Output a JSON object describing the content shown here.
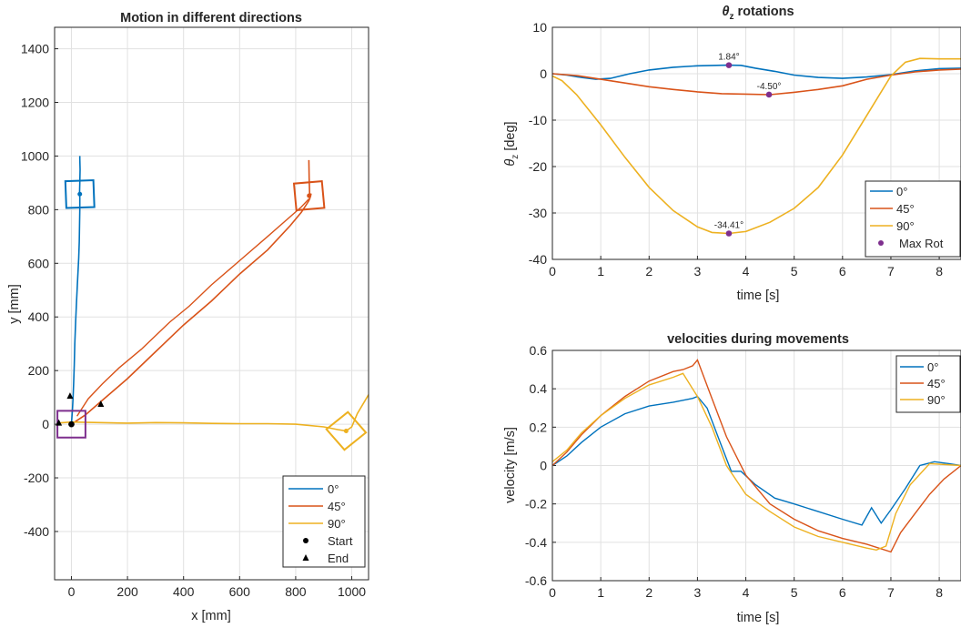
{
  "colors": {
    "c0": "#0072BD",
    "c45": "#D95319",
    "c90": "#EDB120",
    "marker": "#7E2F8E",
    "start_box": "#7E2F8E"
  },
  "chart_data": [
    {
      "type": "line",
      "title": "Motion in different directions",
      "xlabel": "x [mm]",
      "ylabel": "y [mm]",
      "xlim": [
        -60,
        1060
      ],
      "ylim": [
        -580,
        1480
      ],
      "xticks": [
        0,
        200,
        400,
        600,
        800,
        1000
      ],
      "yticks": [
        -400,
        -200,
        0,
        200,
        400,
        600,
        800,
        1000,
        1200,
        1400
      ],
      "grid": true,
      "legend": {
        "position": "bottom-right",
        "entries": [
          "0°",
          "45°",
          "90°",
          "Start",
          "End"
        ]
      },
      "series": [
        {
          "name": "0°",
          "color_key": "c0",
          "x": [
            0,
            2,
            4,
            6,
            8,
            10,
            12,
            15,
            18,
            21,
            24,
            26,
            28,
            29,
            30,
            30,
            29,
            30,
            31,
            30,
            30
          ],
          "y": [
            0,
            30,
            60,
            100,
            150,
            220,
            300,
            380,
            450,
            520,
            580,
            620,
            680,
            740,
            800,
            845,
            860,
            900,
            950,
            990,
            1000
          ],
          "end_box": {
            "center": [
              30,
              858
            ],
            "size_mm": 100,
            "angle_deg": 2
          }
        },
        {
          "name": "45°",
          "color_key": "c45",
          "x": [
            0,
            50,
            100,
            200,
            300,
            400,
            500,
            600,
            700,
            780,
            820,
            845,
            850,
            855,
            850,
            848,
            847
          ],
          "y": [
            0,
            35,
            80,
            170,
            270,
            370,
            460,
            560,
            650,
            740,
            790,
            830,
            840,
            860,
            850,
            920,
            985
          ],
          "x_back": [
            847,
            820,
            700,
            600,
            500,
            420,
            350,
            250,
            170,
            110,
            60,
            20
          ],
          "y_back": [
            840,
            810,
            700,
            610,
            520,
            440,
            380,
            280,
            210,
            150,
            95,
            30
          ],
          "end_box": {
            "center": [
              848,
              852
            ],
            "size_mm": 100,
            "angle_deg": 5
          }
        },
        {
          "name": "90°",
          "color_key": "c90",
          "x": [
            -40,
            0,
            100,
            200,
            300,
            400,
            500,
            600,
            700,
            800,
            900,
            950,
            980,
            1000,
            1020,
            1060
          ],
          "y": [
            5,
            8,
            6,
            4,
            6,
            5,
            3,
            2,
            2,
            0,
            -10,
            -20,
            -25,
            -10,
            40,
            110
          ],
          "end_box": {
            "center": [
              980,
              -25
            ],
            "size_mm": 100,
            "angle_deg": 40
          }
        }
      ],
      "start_points": [
        [
          0,
          0
        ],
        [
          0,
          0
        ],
        [
          0,
          0
        ]
      ],
      "end_points": [
        [
          -45,
          5
        ],
        [
          105,
          75
        ],
        [
          -5,
          105
        ]
      ],
      "start_box": {
        "center": [
          0,
          0
        ],
        "size_mm": 100,
        "angle_deg": 0
      }
    },
    {
      "type": "line",
      "title": "θz rotations",
      "title_main": "θ",
      "title_sub": "z",
      "title_rest": " rotations",
      "xlabel": "time [s]",
      "ylabel": "θz [deg]",
      "ylabel_main": "θ",
      "ylabel_sub": "z",
      "ylabel_rest": " [deg]",
      "xlim": [
        0,
        8.45
      ],
      "ylim": [
        -40,
        10
      ],
      "xticks": [
        0,
        1,
        2,
        3,
        4,
        5,
        6,
        7,
        8
      ],
      "yticks": [
        -40,
        -30,
        -20,
        -10,
        0,
        10
      ],
      "grid": true,
      "legend": {
        "position": "bottom-right",
        "entries": [
          "0°",
          "45°",
          "90°",
          "Max Rot"
        ]
      },
      "series": [
        {
          "name": "0°",
          "color_key": "c0",
          "x": [
            0,
            0.3,
            0.6,
            0.9,
            1.2,
            1.6,
            2.0,
            2.5,
            3.0,
            3.6,
            3.9,
            4.2,
            4.6,
            5.0,
            5.5,
            6.0,
            6.5,
            7.0,
            7.5,
            8.0,
            8.45
          ],
          "y": [
            0,
            -0.3,
            -0.8,
            -1.2,
            -1.0,
            0,
            0.8,
            1.4,
            1.7,
            1.84,
            1.8,
            1.2,
            0.5,
            -0.3,
            -0.8,
            -1.0,
            -0.7,
            -0.2,
            0.6,
            1.1,
            1.2
          ]
        },
        {
          "name": "45°",
          "color_key": "c45",
          "x": [
            0,
            0.5,
            1.0,
            1.5,
            2.0,
            2.5,
            3.0,
            3.5,
            4.0,
            4.5,
            5.0,
            5.5,
            6.0,
            6.5,
            7.0,
            7.5,
            8.0,
            8.45
          ],
          "y": [
            0,
            -0.4,
            -1.2,
            -2.0,
            -2.8,
            -3.4,
            -3.9,
            -4.3,
            -4.4,
            -4.5,
            -4.0,
            -3.4,
            -2.6,
            -1.2,
            -0.3,
            0.4,
            0.8,
            1.0
          ]
        },
        {
          "name": "90°",
          "color_key": "c90",
          "x": [
            0,
            0.2,
            0.5,
            1.0,
            1.5,
            2.0,
            2.5,
            3.0,
            3.3,
            3.65,
            4.0,
            4.5,
            5.0,
            5.5,
            6.0,
            6.5,
            7.0,
            7.3,
            7.6,
            8.0,
            8.45
          ],
          "y": [
            -0.5,
            -1.5,
            -4.5,
            -11,
            -18,
            -24.5,
            -29.5,
            -33,
            -34.2,
            -34.41,
            -34,
            -32,
            -29,
            -24.5,
            -17.5,
            -9,
            -0.5,
            2.5,
            3.3,
            3.2,
            3.2
          ]
        }
      ],
      "max_points": [
        {
          "x": 3.65,
          "y": 1.84,
          "label": "1.84°"
        },
        {
          "x": 4.48,
          "y": -4.5,
          "label": "-4.50°"
        },
        {
          "x": 3.65,
          "y": -34.41,
          "label": "-34.41°"
        }
      ]
    },
    {
      "type": "line",
      "title": "velocities during movements",
      "xlabel": "time [s]",
      "ylabel": "velocity [m/s]",
      "xlim": [
        0,
        8.45
      ],
      "ylim": [
        -0.6,
        0.6
      ],
      "xticks": [
        0,
        1,
        2,
        3,
        4,
        5,
        6,
        7,
        8
      ],
      "yticks": [
        -0.6,
        -0.4,
        -0.2,
        0,
        0.2,
        0.4,
        0.6
      ],
      "grid": true,
      "legend": {
        "position": "top-right",
        "entries": [
          "0°",
          "45°",
          "90°"
        ]
      },
      "series": [
        {
          "name": "0°",
          "color_key": "c0",
          "x": [
            0,
            0.3,
            0.6,
            1.0,
            1.5,
            2.0,
            2.5,
            2.9,
            3.0,
            3.2,
            3.5,
            3.7,
            3.9,
            4.2,
            4.6,
            5.0,
            5.5,
            6.0,
            6.4,
            6.6,
            6.8,
            7.0,
            7.3,
            7.6,
            7.9,
            8.2,
            8.45
          ],
          "y": [
            0,
            0.05,
            0.12,
            0.2,
            0.27,
            0.31,
            0.33,
            0.35,
            0.36,
            0.3,
            0.1,
            -0.03,
            -0.03,
            -0.1,
            -0.17,
            -0.2,
            -0.24,
            -0.28,
            -0.31,
            -0.22,
            -0.3,
            -0.23,
            -0.12,
            0,
            0.02,
            0.01,
            0
          ]
        },
        {
          "name": "45°",
          "color_key": "c45",
          "x": [
            0,
            0.3,
            0.6,
            1.0,
            1.5,
            2.0,
            2.5,
            2.7,
            2.9,
            3.0,
            3.3,
            3.6,
            4.0,
            4.5,
            5.0,
            5.5,
            6.0,
            6.5,
            7.0,
            7.2,
            7.5,
            7.8,
            8.1,
            8.45
          ],
          "y": [
            0,
            0.07,
            0.16,
            0.26,
            0.36,
            0.44,
            0.49,
            0.5,
            0.52,
            0.55,
            0.35,
            0.15,
            -0.05,
            -0.2,
            -0.28,
            -0.34,
            -0.38,
            -0.41,
            -0.45,
            -0.35,
            -0.25,
            -0.15,
            -0.07,
            0
          ]
        },
        {
          "name": "90°",
          "color_key": "c90",
          "x": [
            0,
            0.3,
            0.6,
            1.0,
            1.5,
            2.0,
            2.5,
            2.7,
            2.9,
            3.0,
            3.3,
            3.6,
            4.0,
            4.5,
            5.0,
            5.5,
            6.0,
            6.5,
            6.7,
            6.9,
            7.1,
            7.4,
            7.8,
            8.45
          ],
          "y": [
            0.02,
            0.08,
            0.17,
            0.26,
            0.35,
            0.42,
            0.46,
            0.48,
            0.4,
            0.36,
            0.2,
            0,
            -0.15,
            -0.24,
            -0.32,
            -0.37,
            -0.4,
            -0.43,
            -0.44,
            -0.42,
            -0.25,
            -0.1,
            0.01,
            0
          ]
        }
      ]
    }
  ]
}
